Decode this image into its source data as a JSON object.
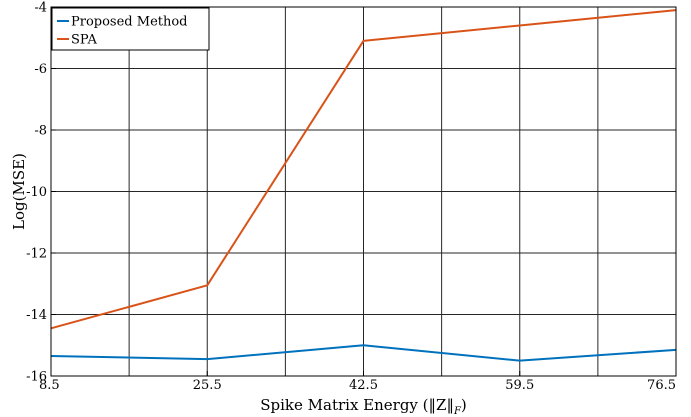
{
  "chart_data": {
    "type": "line",
    "title": "",
    "xlabel": "Spike Matrix Energy (‖Z‖",
    "xlabel_subscript": "F",
    "xlabel_close": ")",
    "ylabel": "Log(MSE)",
    "x": [
      8.5,
      25.5,
      42.5,
      59.5,
      76.5
    ],
    "xlim": [
      8.5,
      76.5
    ],
    "ylim": [
      -16,
      -4
    ],
    "xticks": [
      "8.5",
      "25.5",
      "42.5",
      "59.5",
      "76.5"
    ],
    "yticks": [
      "-16",
      "-14",
      "-12",
      "-10",
      "-8",
      "-6",
      "-4"
    ],
    "x_minor_gridlines": [
      17,
      34,
      51,
      68
    ],
    "grid": true,
    "legend_position": "top-left",
    "series": [
      {
        "name": "Proposed Method",
        "color": "#0072BD",
        "x": [
          8.5,
          25.5,
          42.5,
          59.5,
          76.5
        ],
        "values": [
          -15.35,
          -15.45,
          -15.0,
          -15.5,
          -15.15
        ]
      },
      {
        "name": "SPA",
        "color": "#D95319",
        "x": [
          8.5,
          25.5,
          42.5,
          59.5,
          76.5
        ],
        "values": [
          -14.45,
          -13.05,
          -5.1,
          -4.6,
          -4.1
        ]
      }
    ]
  }
}
